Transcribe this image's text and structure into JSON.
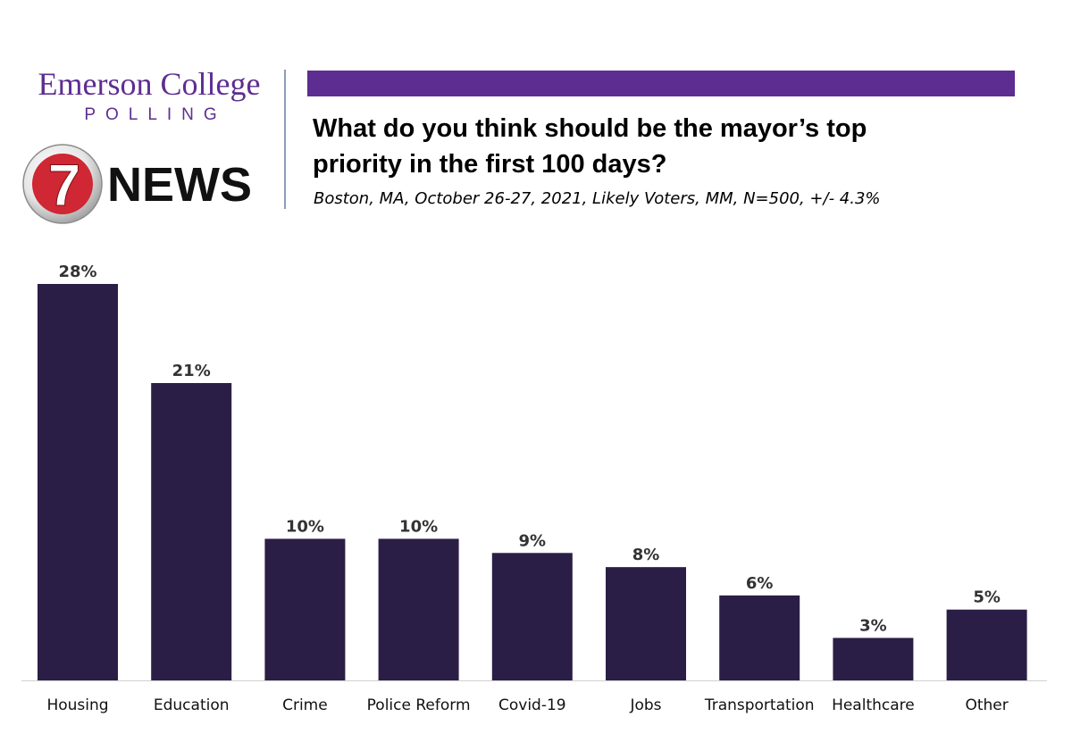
{
  "header": {
    "brand_name": "Emerson College",
    "brand_sub": "POLLING",
    "news_logo_number": "7",
    "news_logo_text": "NEWS",
    "question_line1": "What do you think should be the mayor’s top",
    "question_line2": "priority in the first 100 days?",
    "methodology": "Boston, MA, October 26-27, 2021, Likely Voters, MM, N=500, +/- 4.3%"
  },
  "colors": {
    "accent": "#5e2d91",
    "bar": "#2b1e46",
    "logo_red": "#cf2733"
  },
  "chart_data": {
    "type": "bar",
    "title": "What do you think should be the mayor’s top priority in the first 100 days?",
    "subtitle": "Boston, MA, October 26-27, 2021, Likely Voters, MM, N=500, +/- 4.3%",
    "categories": [
      "Housing",
      "Education",
      "Crime",
      "Police Reform",
      "Covid-19",
      "Jobs",
      "Transportation",
      "Healthcare",
      "Other"
    ],
    "values": [
      28,
      21,
      10,
      10,
      9,
      8,
      6,
      3,
      5
    ],
    "value_labels": [
      "28%",
      "21%",
      "10%",
      "10%",
      "9%",
      "8%",
      "6%",
      "3%",
      "5%"
    ],
    "xlabel": "",
    "ylabel": "",
    "ylim": [
      0,
      28
    ],
    "grid": false,
    "legend": "none"
  }
}
